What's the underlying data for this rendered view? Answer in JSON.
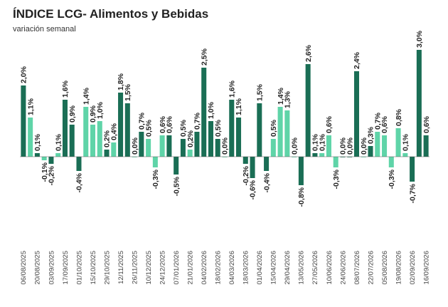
{
  "header": {
    "title": "ÍNDICE LCG- Alimentos y Bebidas",
    "subtitle": "variación semanal"
  },
  "colors": {
    "dark": "#1a6e55",
    "light": "#5fd4a8",
    "label": "#222222",
    "axis": "#555555"
  },
  "chart_data": {
    "type": "bar",
    "title": "ÍNDICE LCG- Alimentos y Bebidas",
    "subtitle": "variación semanal",
    "ylim": [
      -1.0,
      3.2
    ],
    "grid": false,
    "legend": "none",
    "x_tick_labels": [
      "06/08/2025",
      "20/08/2025",
      "03/09/2025",
      "17/09/2025",
      "01/10/2025",
      "15/10/2025",
      "29/10/2025",
      "12/11/2025",
      "26/11/2025",
      "10/12/2025",
      "24/12/2025",
      "07/01/2026",
      "21/01/2026",
      "04/02/2026",
      "18/02/2026",
      "04/03/2026",
      "18/03/2026",
      "01/04/2026",
      "15/04/2026",
      "29/04/2026",
      "13/05/2026",
      "27/05/2026",
      "10/06/2026",
      "24/06/2026",
      "08/07/2026",
      "22/07/2026",
      "05/08/2026",
      "19/08/2026",
      "02/09/2026",
      "16/09/2026"
    ],
    "values": [
      2.0,
      1.1,
      0.1,
      -0.1,
      -0.2,
      0.1,
      1.6,
      0.9,
      -0.4,
      1.4,
      0.9,
      1.0,
      0.2,
      0.4,
      1.8,
      1.5,
      0.0,
      0.7,
      0.5,
      -0.3,
      0.6,
      0.6,
      -0.5,
      0.5,
      0.2,
      0.7,
      2.5,
      1.0,
      0.5,
      0.0,
      1.6,
      1.1,
      -0.2,
      -0.6,
      1.5,
      -0.4,
      0.5,
      1.4,
      1.3,
      0.0,
      -0.8,
      2.6,
      0.1,
      0.1,
      0.6,
      -0.3,
      0.0,
      0.0,
      2.4,
      0.0,
      0.3,
      0.7,
      0.6,
      -0.3,
      0.8,
      0.1,
      -0.7,
      3.0,
      0.6
    ],
    "value_labels": [
      "2,0%",
      "1,1%",
      "0,1%",
      "-0,1%",
      "-0,2%",
      "0,1%",
      "1,6%",
      "0,9%",
      "-0,4%",
      "1,4%",
      "0,9%",
      "1,0%",
      "0,2%",
      "0,4%",
      "1,8%",
      "1,5%",
      "0,0%",
      "0,7%",
      "0,5%",
      "-0,3%",
      "0,6%",
      "0,6%",
      "-0,5%",
      "0,5%",
      "0,2%",
      "0,7%",
      "2,5%",
      "1,0%",
      "0,5%",
      "0,0%",
      "1,6%",
      "1,1%",
      "-0,2%",
      "-0,6%",
      "1,5%",
      "-0,4%",
      "0,5%",
      "1,4%",
      "1,3%",
      "0,0%",
      "-0,8%",
      "2,6%",
      "0,1%",
      "0,1%",
      "0,6%",
      "-0,3%",
      "0,0%",
      "0,0%",
      "2,4%",
      "0,0%",
      "0,3%",
      "0,7%",
      "0,6%",
      "-0,3%",
      "0,8%",
      "0,1%",
      "-0,7%",
      "3,0%",
      "0,6%"
    ],
    "colors": [
      "dark",
      "light",
      "dark",
      "light",
      "dark",
      "light",
      "dark",
      "dark",
      "dark",
      "light",
      "light",
      "light",
      "dark",
      "light",
      "dark",
      "dark",
      "light",
      "dark",
      "light",
      "light",
      "light",
      "dark",
      "dark",
      "dark",
      "light",
      "dark",
      "dark",
      "dark",
      "dark",
      "light",
      "dark",
      "dark",
      "dark",
      "dark",
      "dark",
      "dark",
      "light",
      "light",
      "light",
      "light",
      "dark",
      "dark",
      "dark",
      "light",
      "light",
      "light",
      "dark",
      "dark",
      "dark",
      "light",
      "dark",
      "light",
      "light",
      "light",
      "light",
      "light",
      "dark",
      "dark",
      "dark"
    ]
  }
}
